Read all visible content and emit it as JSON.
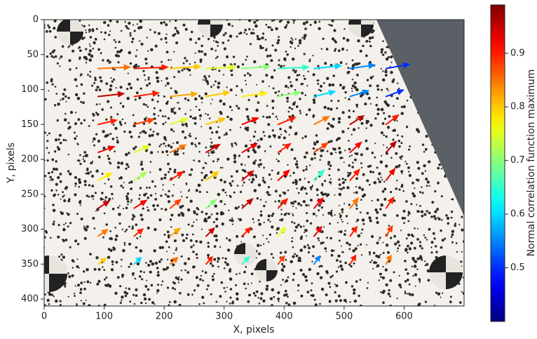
{
  "chart_data": {
    "type": "quiver",
    "x_label": "X, pixels",
    "y_label": "Y, pixels",
    "colorbar_label": "Normal correlation function maximum",
    "colormap": "jet",
    "y_inverted": true,
    "xlim": [
      0,
      700
    ],
    "ylim": [
      0,
      410
    ],
    "clim": [
      0.4,
      0.99
    ],
    "xticks": [
      0,
      100,
      200,
      300,
      400,
      500,
      600
    ],
    "yticks": [
      0,
      50,
      100,
      150,
      200,
      250,
      300,
      350,
      400
    ],
    "cticks": [
      0.5,
      0.6,
      0.7,
      0.8,
      0.9
    ],
    "x": [
      90,
      150,
      210,
      270,
      330,
      390,
      450,
      510,
      570,
      90,
      150,
      210,
      270,
      330,
      390,
      450,
      510,
      570,
      90,
      150,
      210,
      270,
      330,
      390,
      450,
      510,
      570,
      90,
      150,
      210,
      270,
      330,
      390,
      450,
      510,
      570,
      90,
      150,
      210,
      270,
      330,
      390,
      450,
      510,
      570,
      90,
      150,
      210,
      270,
      330,
      390,
      450,
      510,
      570,
      90,
      150,
      210,
      270,
      330,
      390,
      450,
      510,
      570,
      90,
      150,
      210,
      270,
      330,
      390,
      450,
      510,
      570
    ],
    "y": [
      70,
      70,
      70,
      70,
      70,
      70,
      70,
      70,
      70,
      110,
      110,
      110,
      110,
      110,
      110,
      110,
      110,
      110,
      150,
      150,
      150,
      150,
      150,
      150,
      150,
      150,
      150,
      190,
      190,
      190,
      190,
      190,
      190,
      190,
      190,
      190,
      230,
      230,
      230,
      230,
      230,
      230,
      230,
      230,
      230,
      270,
      270,
      270,
      270,
      270,
      270,
      270,
      270,
      270,
      310,
      310,
      310,
      310,
      310,
      310,
      310,
      310,
      310,
      350,
      350,
      350,
      350,
      350,
      350,
      350,
      350,
      350
    ],
    "u": [
      52,
      55,
      50,
      48,
      45,
      50,
      44,
      40,
      38,
      42,
      40,
      44,
      38,
      40,
      36,
      34,
      30,
      28,
      30,
      32,
      28,
      30,
      26,
      28,
      24,
      22,
      20,
      26,
      24,
      25,
      22,
      24,
      20,
      22,
      18,
      16,
      22,
      20,
      21,
      20,
      18,
      18,
      16,
      15,
      14,
      18,
      20,
      17,
      16,
      17,
      15,
      14,
      13,
      12,
      15,
      14,
      16,
      13,
      14,
      12,
      12,
      11,
      10,
      12,
      11,
      12,
      10,
      11,
      10,
      9,
      9,
      8
    ],
    "v": [
      -2,
      -2,
      -3,
      -2,
      -3,
      -2,
      -4,
      -5,
      -6,
      -4,
      -5,
      -4,
      -6,
      -5,
      -6,
      -7,
      -8,
      -9,
      -6,
      -7,
      -8,
      -8,
      -9,
      -10,
      -11,
      -12,
      -13,
      -8,
      -9,
      -10,
      -11,
      -12,
      -12,
      -13,
      -14,
      -15,
      -10,
      -11,
      -12,
      -12,
      -13,
      -14,
      -14,
      -15,
      -16,
      -10,
      -11,
      -12,
      -12,
      -13,
      -13,
      -14,
      -14,
      -15,
      -9,
      -10,
      -11,
      -11,
      -12,
      -12,
      -13,
      -13,
      -14,
      -8,
      -9,
      -9,
      -10,
      -10,
      -11,
      -11,
      -12,
      -12
    ],
    "c": [
      0.85,
      0.9,
      0.8,
      0.75,
      0.7,
      0.65,
      0.6,
      0.55,
      0.5,
      0.95,
      0.9,
      0.82,
      0.8,
      0.78,
      0.7,
      0.6,
      0.55,
      0.5,
      0.9,
      0.88,
      0.75,
      0.8,
      0.92,
      0.9,
      0.85,
      0.95,
      0.9,
      0.92,
      0.75,
      0.85,
      0.95,
      0.93,
      0.9,
      0.88,
      0.92,
      0.96,
      0.78,
      0.72,
      0.9,
      0.8,
      0.94,
      0.92,
      0.65,
      0.9,
      0.93,
      0.95,
      0.92,
      0.88,
      0.7,
      0.95,
      0.9,
      0.92,
      0.85,
      0.9,
      0.85,
      0.9,
      0.82,
      0.95,
      0.9,
      0.75,
      0.93,
      0.9,
      0.88,
      0.8,
      0.6,
      0.85,
      0.9,
      0.65,
      0.88,
      0.55,
      0.9,
      0.85
    ]
  }
}
